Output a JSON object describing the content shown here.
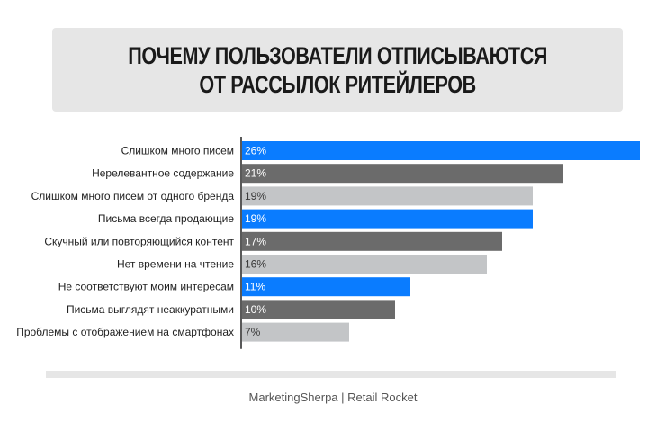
{
  "chart_data": {
    "type": "bar",
    "orientation": "horizontal",
    "title_lines": [
      "ПОЧЕМУ ПОЛЬЗОВАТЕЛИ ОТПИСЫВАЮТСЯ",
      "ОТ РАССЫЛОК РИТЕЙЛЕРОВ"
    ],
    "categories": [
      "Слишком много писем",
      "Нерелевантное содержание",
      "Слишком много писем от одного бренда",
      "Письма всегда продающие",
      "Скучный или повторяющийся контент",
      "Нет времени на чтение",
      "Не соответствуют моим интересам",
      "Письма выглядят неаккуратными",
      "Проблемы с отображением на смартфонах"
    ],
    "values": [
      26,
      21,
      19,
      19,
      17,
      16,
      11,
      10,
      7
    ],
    "value_labels": [
      "26%",
      "21%",
      "19%",
      "19%",
      "17%",
      "16%",
      "11%",
      "10%",
      "7%"
    ],
    "bar_colors": [
      "#0a7cff",
      "#6b6b6b",
      "#c3c5c7",
      "#0a7cff",
      "#6b6b6b",
      "#c3c5c7",
      "#0a7cff",
      "#6b6b6b",
      "#c3c5c7"
    ],
    "xlim": [
      0,
      26
    ],
    "grid": false,
    "legend": "none"
  },
  "source": "MarketingSherpa | Retail Rocket"
}
